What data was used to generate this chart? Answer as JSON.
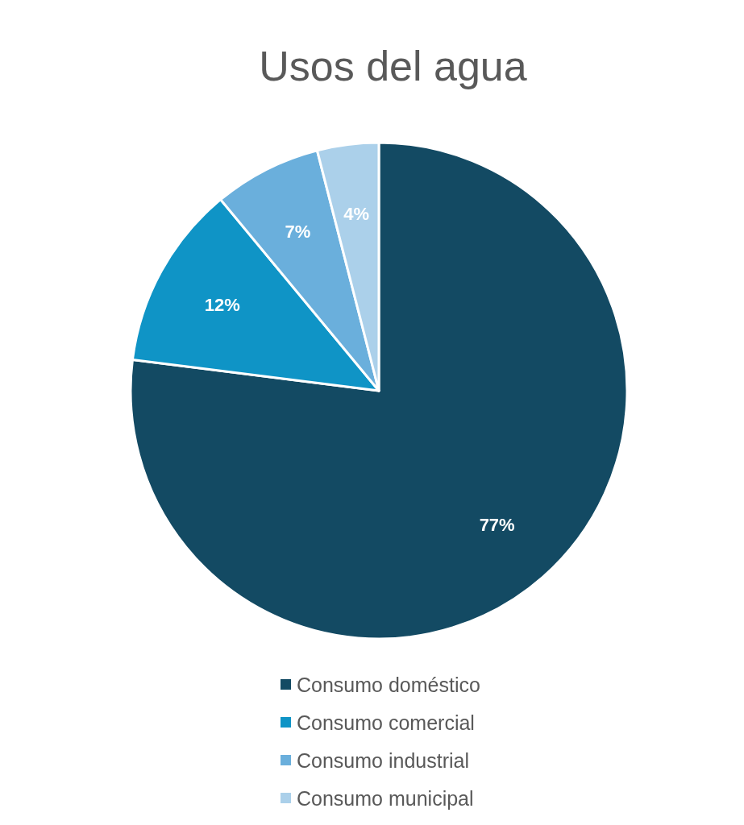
{
  "chart_data": {
    "type": "pie",
    "title": "Usos del agua",
    "categories": [
      "Consumo doméstico",
      "Consumo comercial",
      "Consumo industrial",
      "Consumo municipal"
    ],
    "values": [
      77,
      12,
      7,
      4
    ],
    "colors": [
      "#134a63",
      "#0f94c6",
      "#6aafdc",
      "#abd0ea"
    ],
    "value_labels": [
      "77%",
      "12%",
      "7%",
      "4%"
    ],
    "legend": "bottom"
  }
}
